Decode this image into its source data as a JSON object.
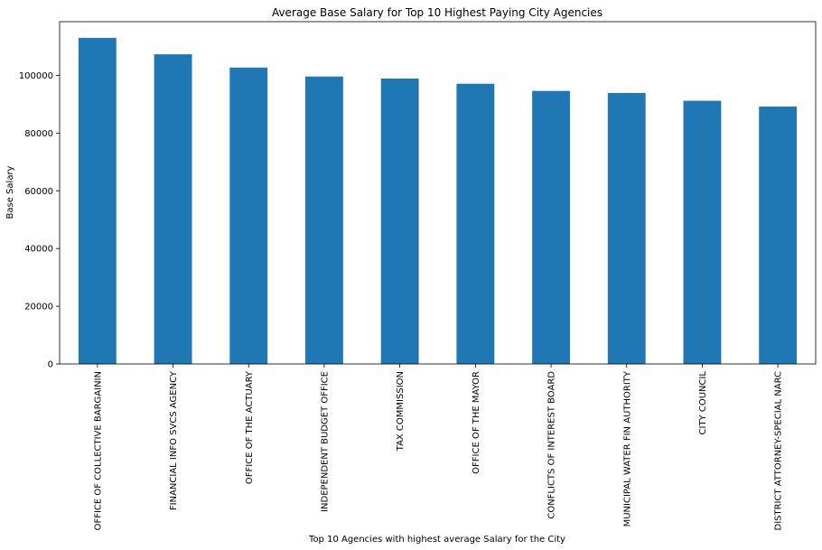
{
  "chart_data": {
    "type": "bar",
    "title": "Average Base Salary for Top 10 Highest Paying City Agencies",
    "xlabel": "Top 10 Agencies with highest average Salary for the City",
    "ylabel": "Base Salary",
    "categories": [
      "OFFICE OF COLLECTIVE BARGAININ",
      "FINANCIAL INFO SVCS AGENCY",
      "OFFICE OF THE ACTUARY",
      "INDEPENDENT BUDGET OFFICE",
      "TAX COMMISSION",
      "OFFICE OF THE MAYOR",
      "CONFLICTS OF INTEREST BOARD",
      "MUNICIPAL WATER FIN AUTHORITY",
      "CITY COUNCIL",
      "DISTRICT ATTORNEY-SPECIAL NARC"
    ],
    "values": [
      113000,
      107300,
      102700,
      99600,
      98900,
      97100,
      94600,
      93900,
      91200,
      89200
    ],
    "yticks": [
      0,
      20000,
      40000,
      60000,
      80000,
      100000
    ],
    "ylim": [
      0,
      118600
    ],
    "bar_color": "#1f77b4",
    "grid": false,
    "legend": "none"
  }
}
